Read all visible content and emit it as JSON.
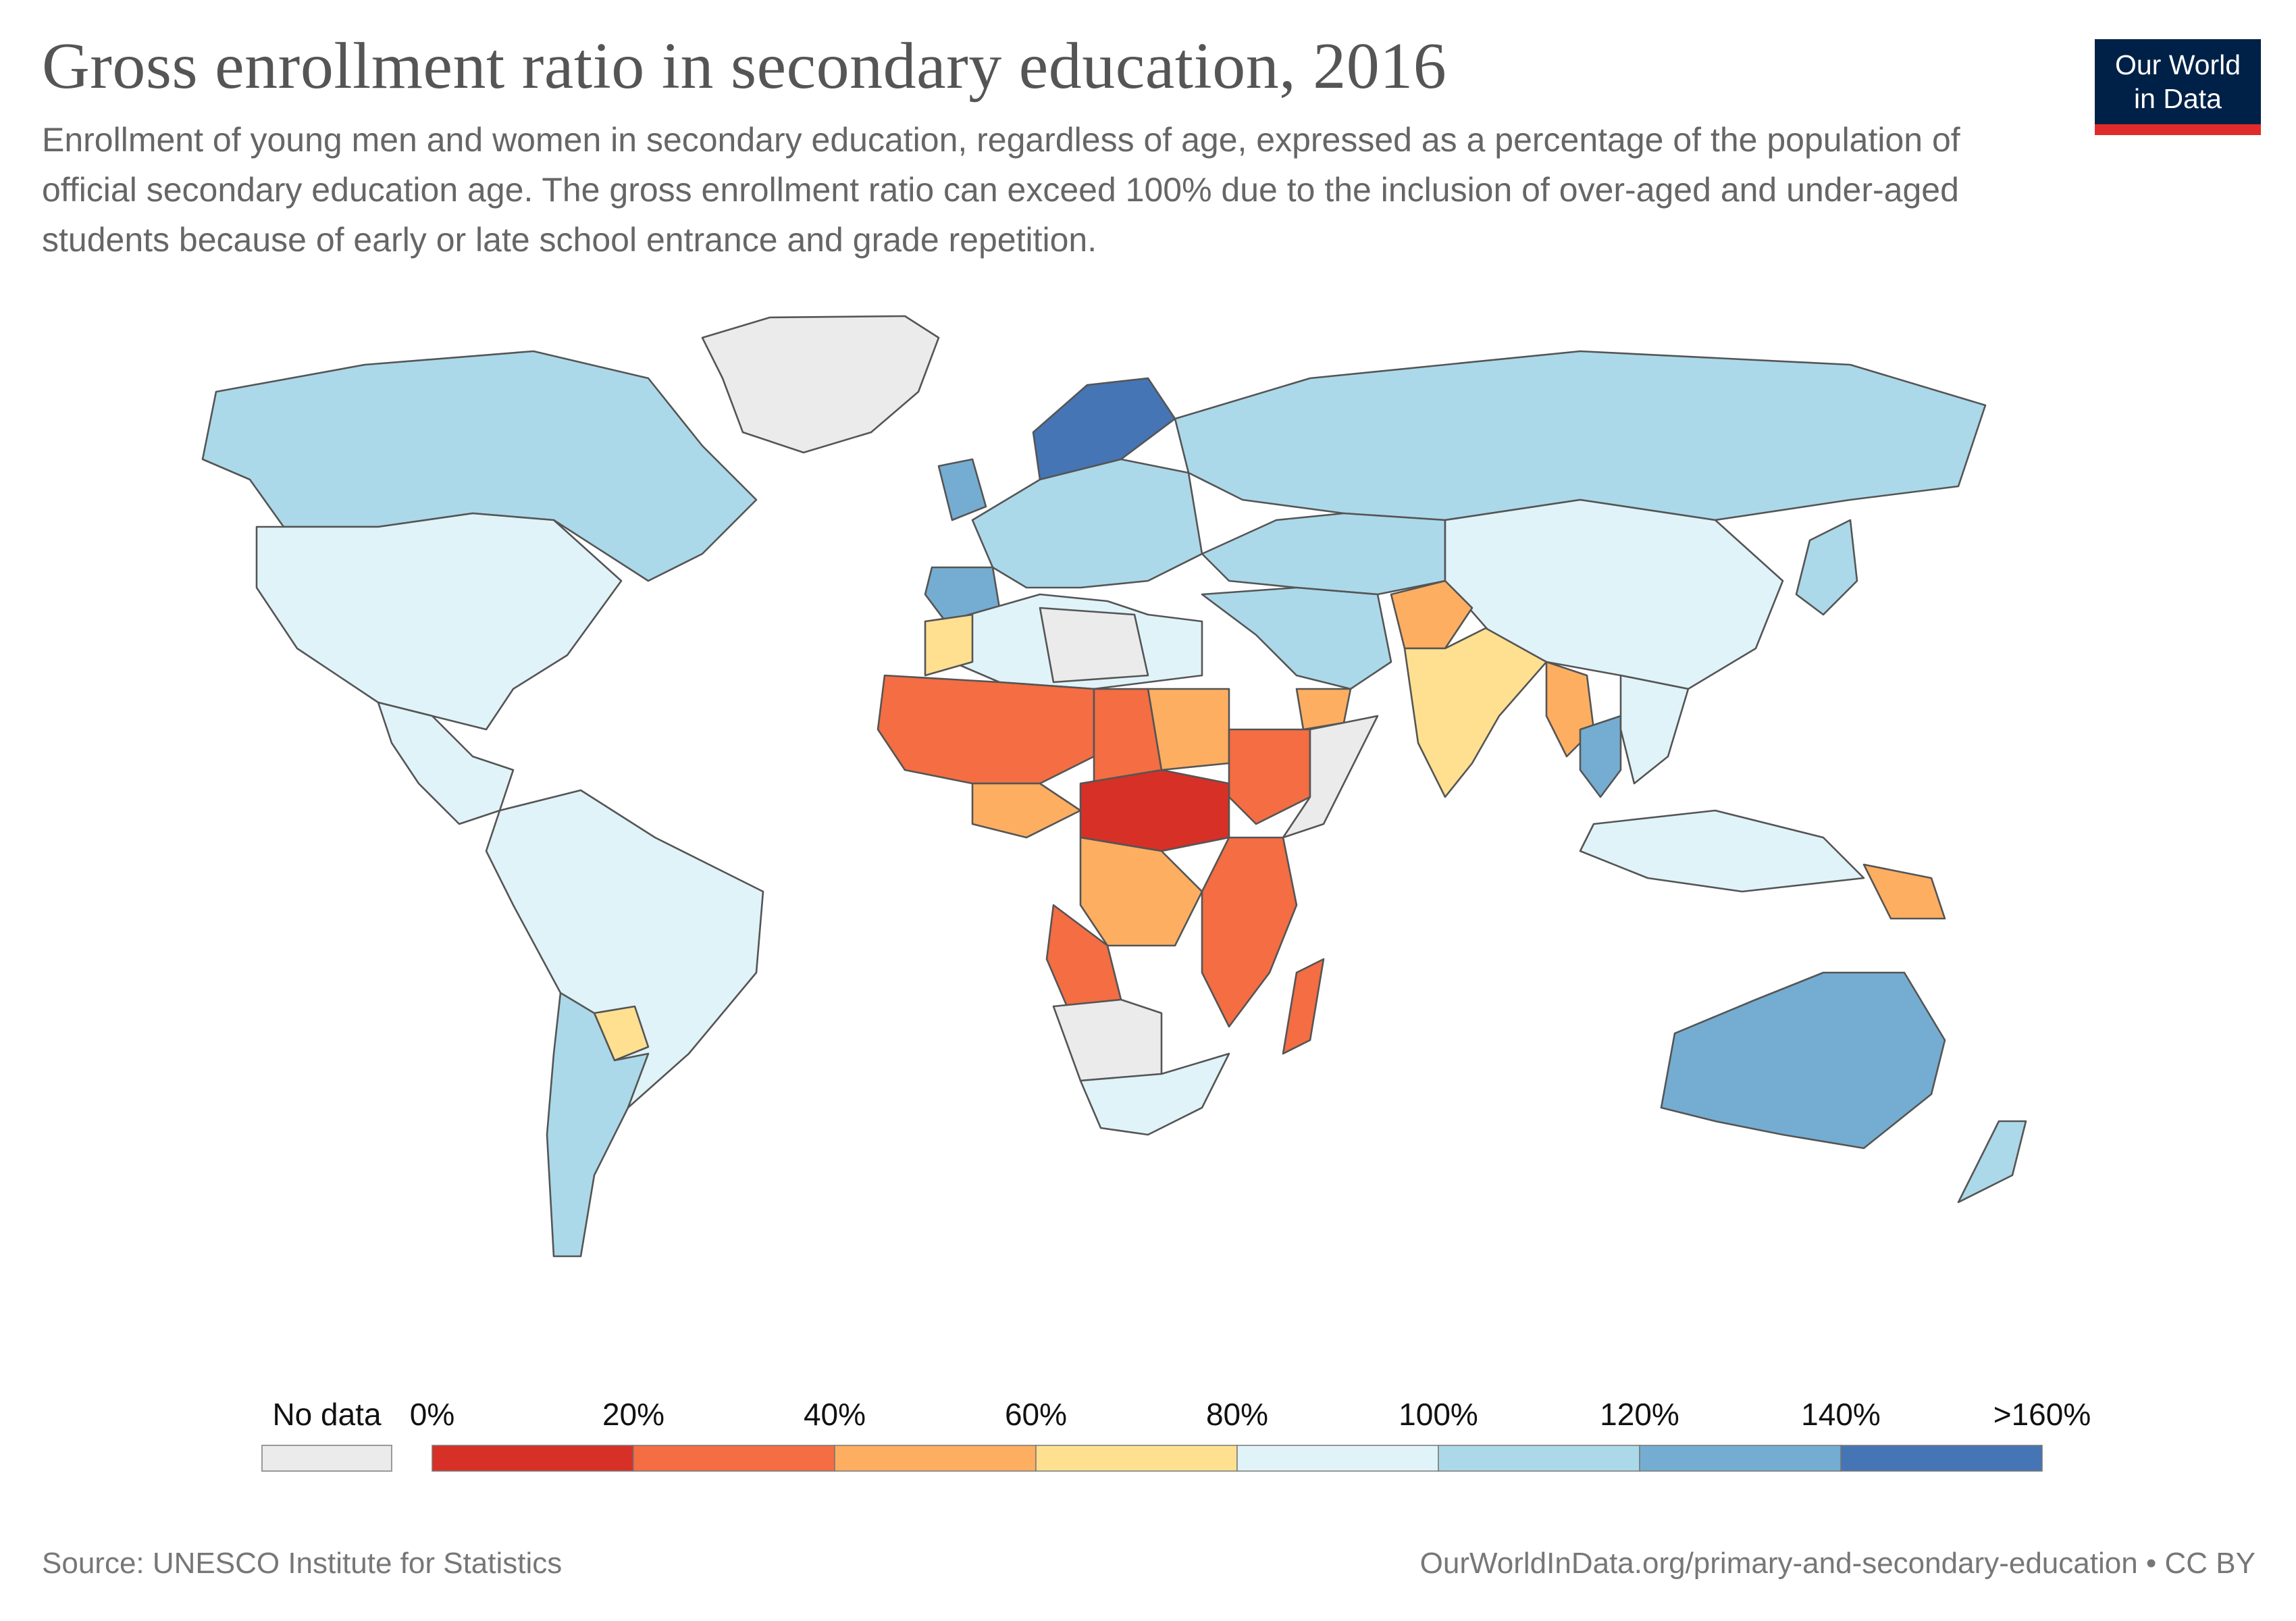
{
  "header": {
    "title": "Gross enrollment ratio in secondary education, 2016",
    "subtitle": "Enrollment of young men and women in secondary education, regardless of age, expressed as a percentage of the population of official secondary education age. The gross enrollment ratio can exceed 100% due to the inclusion of over-aged and under-aged students because of early or late school entrance and grade repetition."
  },
  "logo": {
    "line1": "Our World",
    "line2": "in Data",
    "bg": "#002147",
    "accent": "#e12b2b"
  },
  "legend": {
    "no_data_label": "No data",
    "no_data_color": "#ebebeb",
    "bins": [
      {
        "label_start": "0%",
        "color": "#d73027"
      },
      {
        "label_start": "20%",
        "color": "#f46d43"
      },
      {
        "label_start": "40%",
        "color": "#fdae61"
      },
      {
        "label_start": "60%",
        "color": "#fee090"
      },
      {
        "label_start": "80%",
        "color": "#e0f3f8"
      },
      {
        "label_start": "100%",
        "color": "#abd9e9"
      },
      {
        "label_start": "120%",
        "color": "#74add1"
      },
      {
        "label_start": "140%",
        "color": "#4575b4"
      }
    ],
    "end_label": ">160%"
  },
  "map_data": {
    "regions": [
      {
        "id": "north-america",
        "bin": 4
      },
      {
        "id": "canada",
        "bin": 5
      },
      {
        "id": "greenland",
        "bin": -1
      },
      {
        "id": "central-america",
        "bin": 4
      },
      {
        "id": "south-america",
        "bin": 4
      },
      {
        "id": "argentina",
        "bin": 5
      },
      {
        "id": "paraguay",
        "bin": 3
      },
      {
        "id": "scandinavia",
        "bin": 7
      },
      {
        "id": "europe",
        "bin": 5
      },
      {
        "id": "iberia",
        "bin": 6
      },
      {
        "id": "uk",
        "bin": 6
      },
      {
        "id": "russia",
        "bin": 5
      },
      {
        "id": "central-asia",
        "bin": 5
      },
      {
        "id": "china",
        "bin": 4
      },
      {
        "id": "middle-east",
        "bin": 5
      },
      {
        "id": "pakistan",
        "bin": 2
      },
      {
        "id": "india",
        "bin": 3
      },
      {
        "id": "southeast-asia",
        "bin": 4
      },
      {
        "id": "myanmar",
        "bin": 2
      },
      {
        "id": "thailand",
        "bin": 6
      },
      {
        "id": "indonesia",
        "bin": 4
      },
      {
        "id": "north-africa",
        "bin": 4
      },
      {
        "id": "morocco",
        "bin": 3
      },
      {
        "id": "libya-sudan-nodata",
        "bin": -1
      },
      {
        "id": "west-africa",
        "bin": 1
      },
      {
        "id": "sahel-east",
        "bin": 1
      },
      {
        "id": "sudan",
        "bin": 2
      },
      {
        "id": "ethiopia",
        "bin": 1
      },
      {
        "id": "somalia",
        "bin": -1
      },
      {
        "id": "central-africa",
        "bin": 0
      },
      {
        "id": "gulf-of-guinea",
        "bin": 2
      },
      {
        "id": "drc",
        "bin": 2
      },
      {
        "id": "angola",
        "bin": 1
      },
      {
        "id": "east-africa",
        "bin": 1
      },
      {
        "id": "namibia-botswana",
        "bin": -1
      },
      {
        "id": "south-africa",
        "bin": 4
      },
      {
        "id": "madagascar",
        "bin": 1
      },
      {
        "id": "yemen",
        "bin": 2
      },
      {
        "id": "papua-new-guinea",
        "bin": 2
      },
      {
        "id": "australia",
        "bin": 6
      },
      {
        "id": "new-zealand",
        "bin": 5
      },
      {
        "id": "japan",
        "bin": 5
      }
    ]
  },
  "footer": {
    "source": "Source: UNESCO Institute for Statistics",
    "url": "OurWorldInData.org/primary-and-secondary-education • CC BY"
  }
}
